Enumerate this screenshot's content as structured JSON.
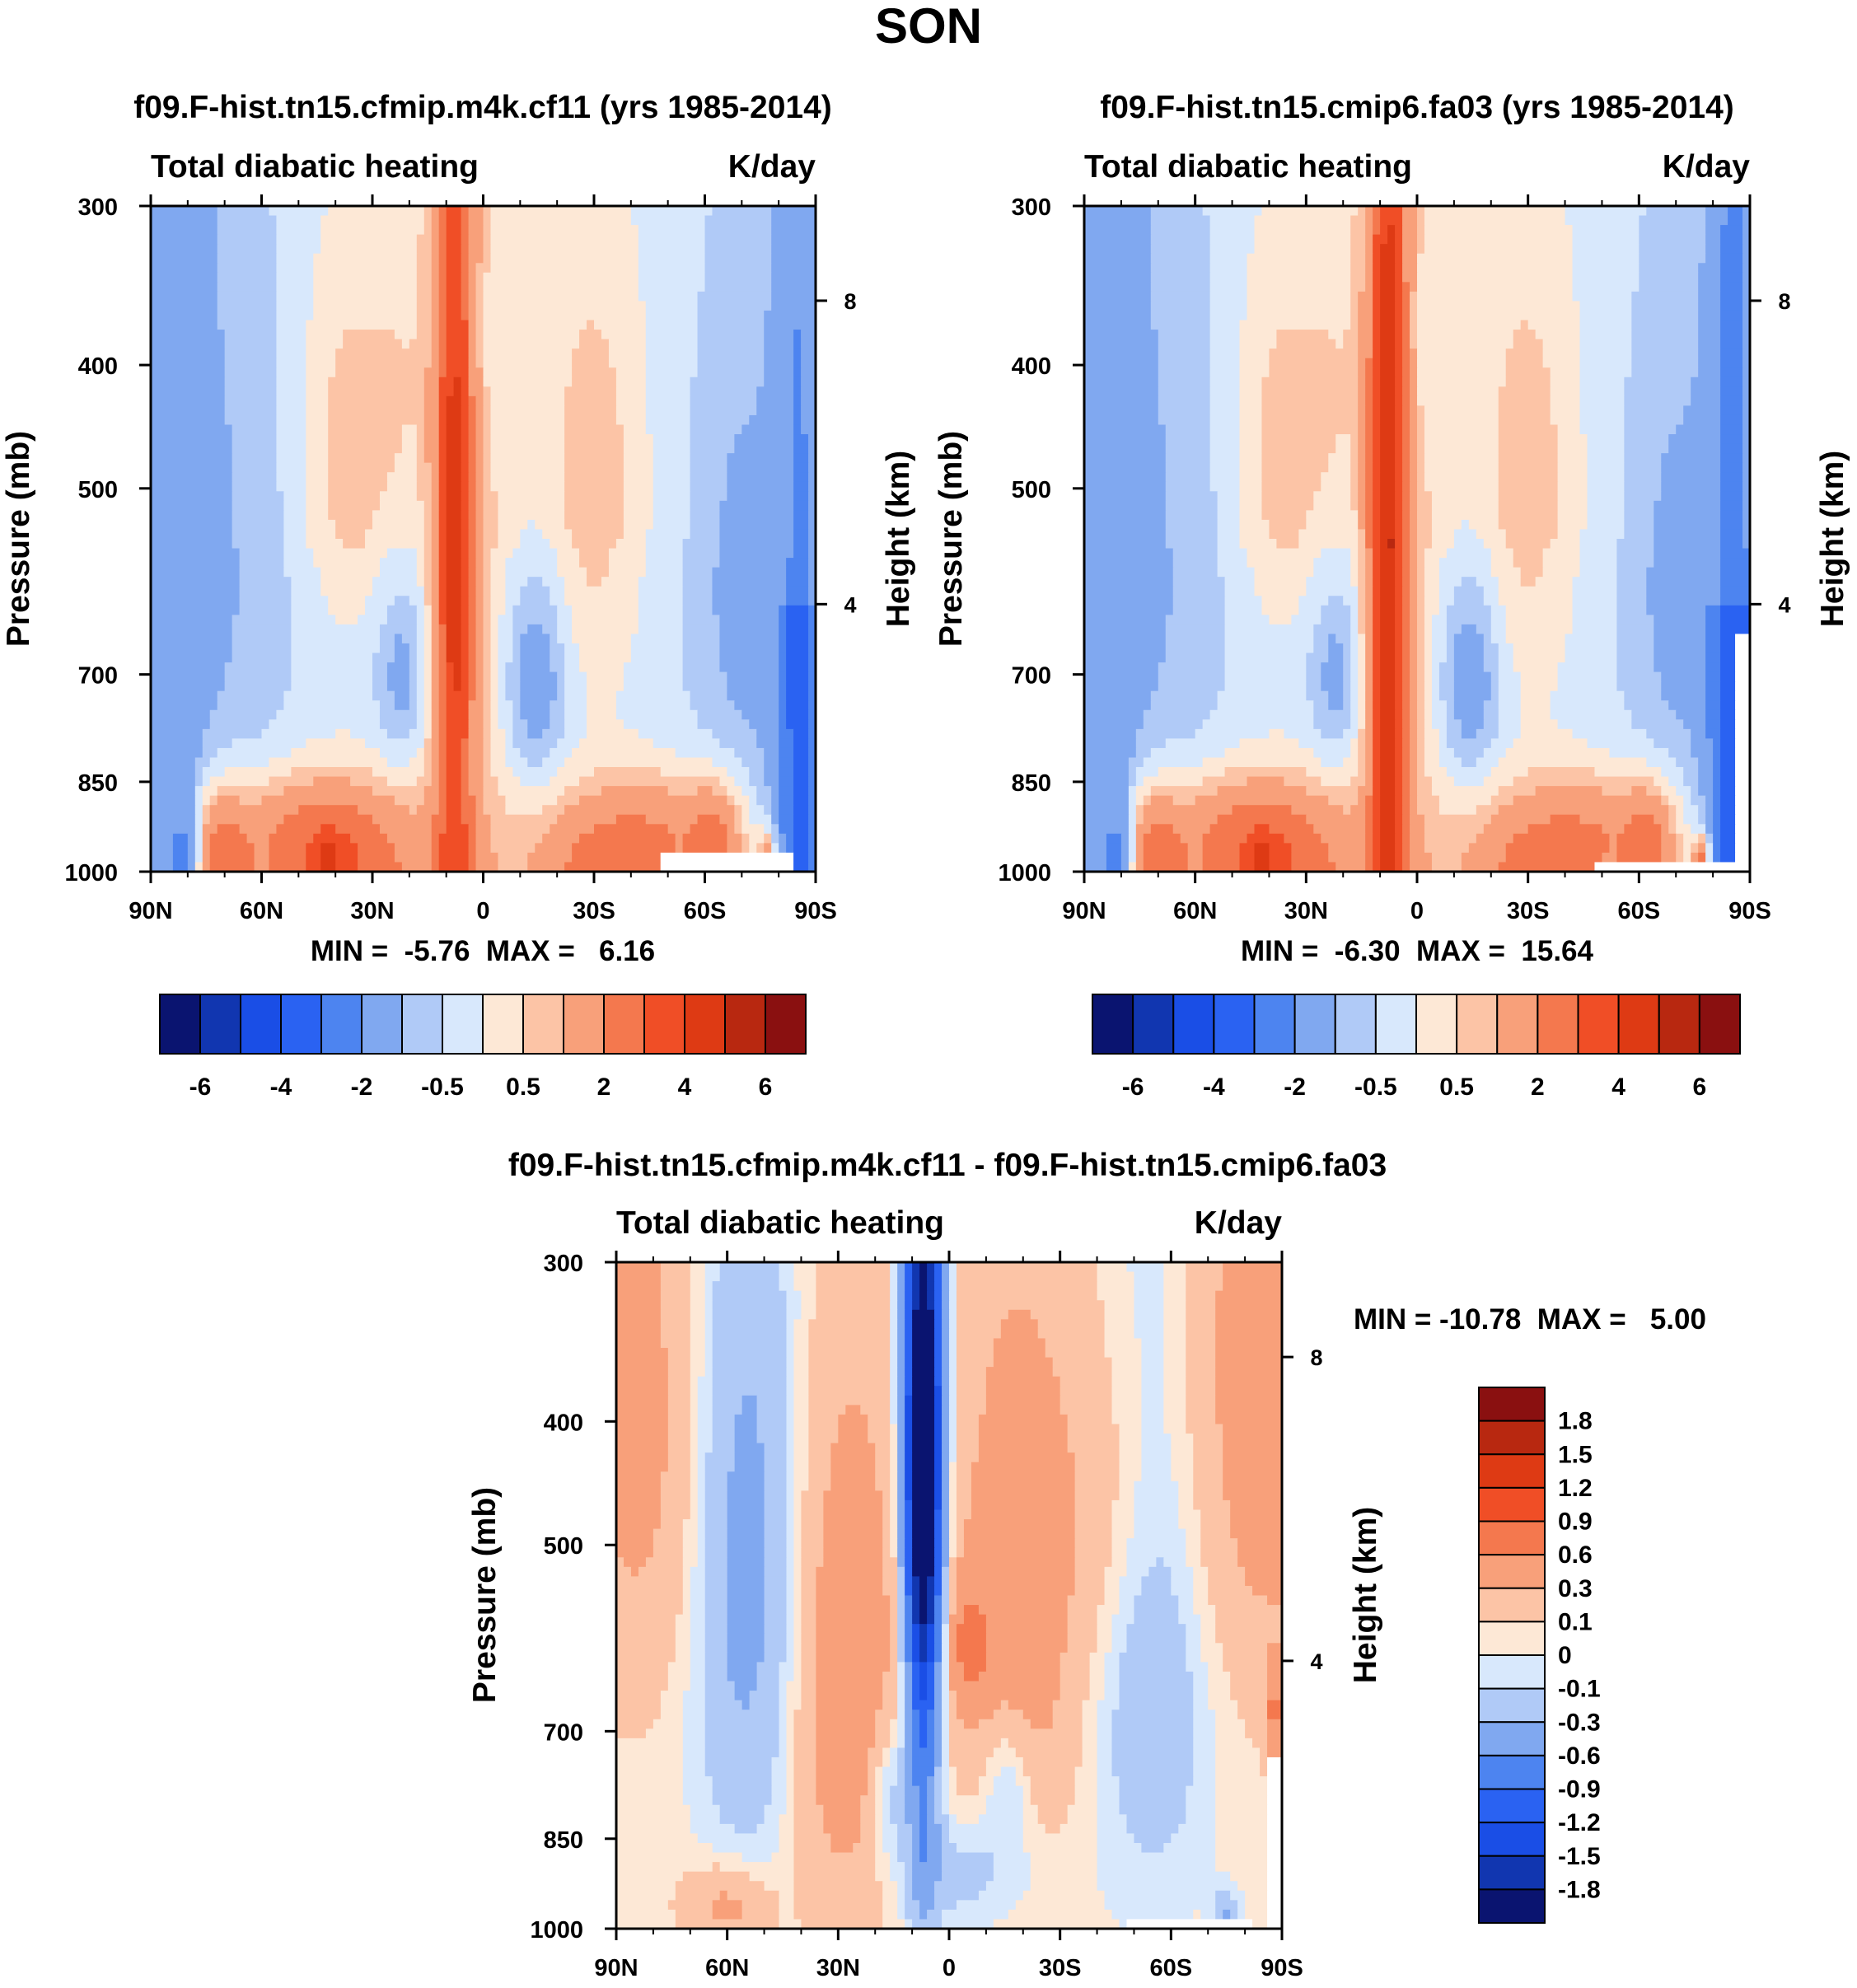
{
  "page": {
    "title": "SON"
  },
  "colors": {
    "ref_palette": [
      "#0a1470",
      "#1136b0",
      "#1a4ee6",
      "#2a62f2",
      "#4d84f0",
      "#80a8f0",
      "#b0caf7",
      "#d8e8fc",
      "#fde8d6",
      "#fcc4a6",
      "#f8a07a",
      "#f4784e",
      "#f04e26",
      "#de3a14",
      "#b82810",
      "#8a1010"
    ],
    "diff_palette": [
      "#0a1470",
      "#1136b0",
      "#1a4ee6",
      "#2a62f2",
      "#4d84f0",
      "#80a8f0",
      "#b0caf7",
      "#d8e8fc",
      "#fde8d6",
      "#fcc4a6",
      "#f8a07a",
      "#f4784e",
      "#f04e26",
      "#de3a14",
      "#b82810",
      "#8a1010"
    ],
    "missing": "#ffffff"
  },
  "chart_data": [
    {
      "id": "panel_a",
      "type": "heatmap",
      "title": "f09.F-hist.tn15.cfmip.m4k.cf11 (yrs 1985-2014)",
      "left_label": "Total diabatic heating",
      "right_label": "K/day",
      "xlabel": "",
      "ylabel": "Pressure (mb)",
      "y2label": "Height (km)",
      "x_ticks": [
        "90N",
        "60N",
        "30N",
        "0",
        "30S",
        "60S",
        "90S"
      ],
      "x_values": [
        90,
        60,
        30,
        0,
        -30,
        -60,
        -90
      ],
      "y_ticks": [
        "300",
        "400",
        "500",
        "700",
        "850",
        "1000"
      ],
      "y_values": [
        300,
        400,
        500,
        700,
        850,
        1000
      ],
      "y2_ticks": [
        "8",
        "4"
      ],
      "y2_values": [
        8,
        4
      ],
      "ylim": [
        1000,
        300
      ],
      "stats": "MIN =  -5.76  MAX =   6.16",
      "colorbar_labels": [
        "-6",
        "-4",
        "-2",
        "-0.5",
        "0.5",
        "2",
        "4",
        "6"
      ],
      "colorbar_levels": [
        -7,
        -6,
        -5,
        -4,
        -3,
        -2,
        -1,
        -0.5,
        0,
        0.5,
        1,
        2,
        3,
        4,
        5,
        6,
        7
      ]
    },
    {
      "id": "panel_b",
      "type": "heatmap",
      "title": "f09.F-hist.tn15.cmip6.fa03 (yrs 1985-2014)",
      "left_label": "Total diabatic heating",
      "right_label": "K/day",
      "xlabel": "",
      "ylabel": "Pressure (mb)",
      "y2label": "Height (km)",
      "x_ticks": [
        "90N",
        "60N",
        "30N",
        "0",
        "30S",
        "60S",
        "90S"
      ],
      "x_values": [
        90,
        60,
        30,
        0,
        -30,
        -60,
        -90
      ],
      "y_ticks": [
        "300",
        "400",
        "500",
        "700",
        "850",
        "1000"
      ],
      "y_values": [
        300,
        400,
        500,
        700,
        850,
        1000
      ],
      "y2_ticks": [
        "8",
        "4"
      ],
      "y2_values": [
        8,
        4
      ],
      "ylim": [
        1000,
        300
      ],
      "stats": "MIN =  -6.30  MAX =  15.64",
      "colorbar_labels": [
        "-6",
        "-4",
        "-2",
        "-0.5",
        "0.5",
        "2",
        "4",
        "6"
      ],
      "colorbar_levels": [
        -7,
        -6,
        -5,
        -4,
        -3,
        -2,
        -1,
        -0.5,
        0,
        0.5,
        1,
        2,
        3,
        4,
        5,
        6,
        7
      ]
    },
    {
      "id": "panel_c",
      "type": "heatmap",
      "title": "f09.F-hist.tn15.cfmip.m4k.cf11 - f09.F-hist.tn15.cmip6.fa03",
      "left_label": "Total diabatic heating",
      "right_label": "K/day",
      "xlabel": "",
      "ylabel": "Pressure (mb)",
      "y2label": "Height (km)",
      "x_ticks": [
        "90N",
        "60N",
        "30N",
        "0",
        "30S",
        "60S",
        "90S"
      ],
      "x_values": [
        90,
        60,
        30,
        0,
        -30,
        -60,
        -90
      ],
      "y_ticks": [
        "300",
        "400",
        "500",
        "700",
        "850",
        "1000"
      ],
      "y_values": [
        300,
        400,
        500,
        700,
        850,
        1000
      ],
      "y2_ticks": [
        "8",
        "4"
      ],
      "y2_values": [
        8,
        4
      ],
      "ylim": [
        1000,
        300
      ],
      "stats": "MIN = -10.78  MAX =   5.00",
      "colorbar_labels": [
        "1.8",
        "1.5",
        "1.2",
        "0.9",
        "0.6",
        "0.3",
        "0.1",
        "0",
        "-0.1",
        "-0.3",
        "-0.6",
        "-0.9",
        "-1.2",
        "-1.5",
        "-1.8"
      ],
      "colorbar_levels": [
        -2.1,
        -1.8,
        -1.5,
        -1.2,
        -0.9,
        -0.6,
        -0.3,
        -0.1,
        0,
        0.1,
        0.3,
        0.6,
        0.9,
        1.2,
        1.5,
        1.8,
        2.1
      ]
    }
  ]
}
